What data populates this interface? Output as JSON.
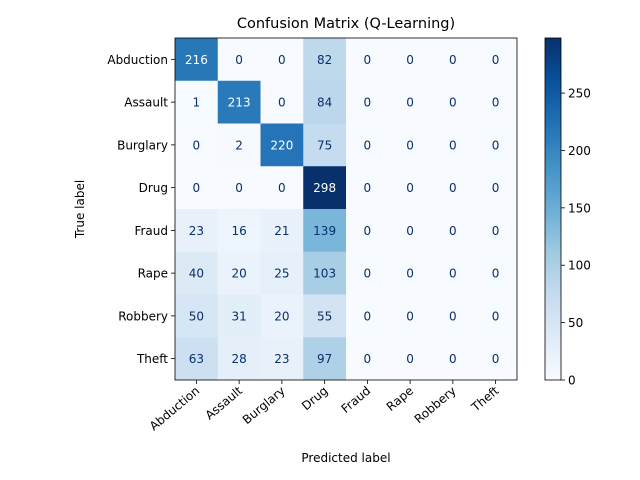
{
  "chart_data": {
    "type": "heatmap",
    "title": "Confusion Matrix (Q-Learning)",
    "xlabel": "Predicted label",
    "ylabel": "True label",
    "row_labels": [
      "Abduction",
      "Assault",
      "Burglary",
      "Drug",
      "Fraud",
      "Rape",
      "Robbery",
      "Theft"
    ],
    "col_labels": [
      "Abduction",
      "Assault",
      "Burglary",
      "Drug",
      "Fraud",
      "Rape",
      "Robbery",
      "Theft"
    ],
    "values": [
      [
        216,
        0,
        0,
        82,
        0,
        0,
        0,
        0
      ],
      [
        1,
        213,
        0,
        84,
        0,
        0,
        0,
        0
      ],
      [
        0,
        2,
        220,
        75,
        0,
        0,
        0,
        0
      ],
      [
        0,
        0,
        0,
        298,
        0,
        0,
        0,
        0
      ],
      [
        23,
        16,
        21,
        139,
        0,
        0,
        0,
        0
      ],
      [
        40,
        20,
        25,
        103,
        0,
        0,
        0,
        0
      ],
      [
        50,
        31,
        20,
        55,
        0,
        0,
        0,
        0
      ],
      [
        63,
        28,
        23,
        97,
        0,
        0,
        0,
        0
      ]
    ],
    "colormap": "Blues",
    "vmin": 0,
    "vmax": 298,
    "colorbar_ticks": [
      0,
      50,
      100,
      150,
      200,
      250
    ],
    "grid": false
  }
}
